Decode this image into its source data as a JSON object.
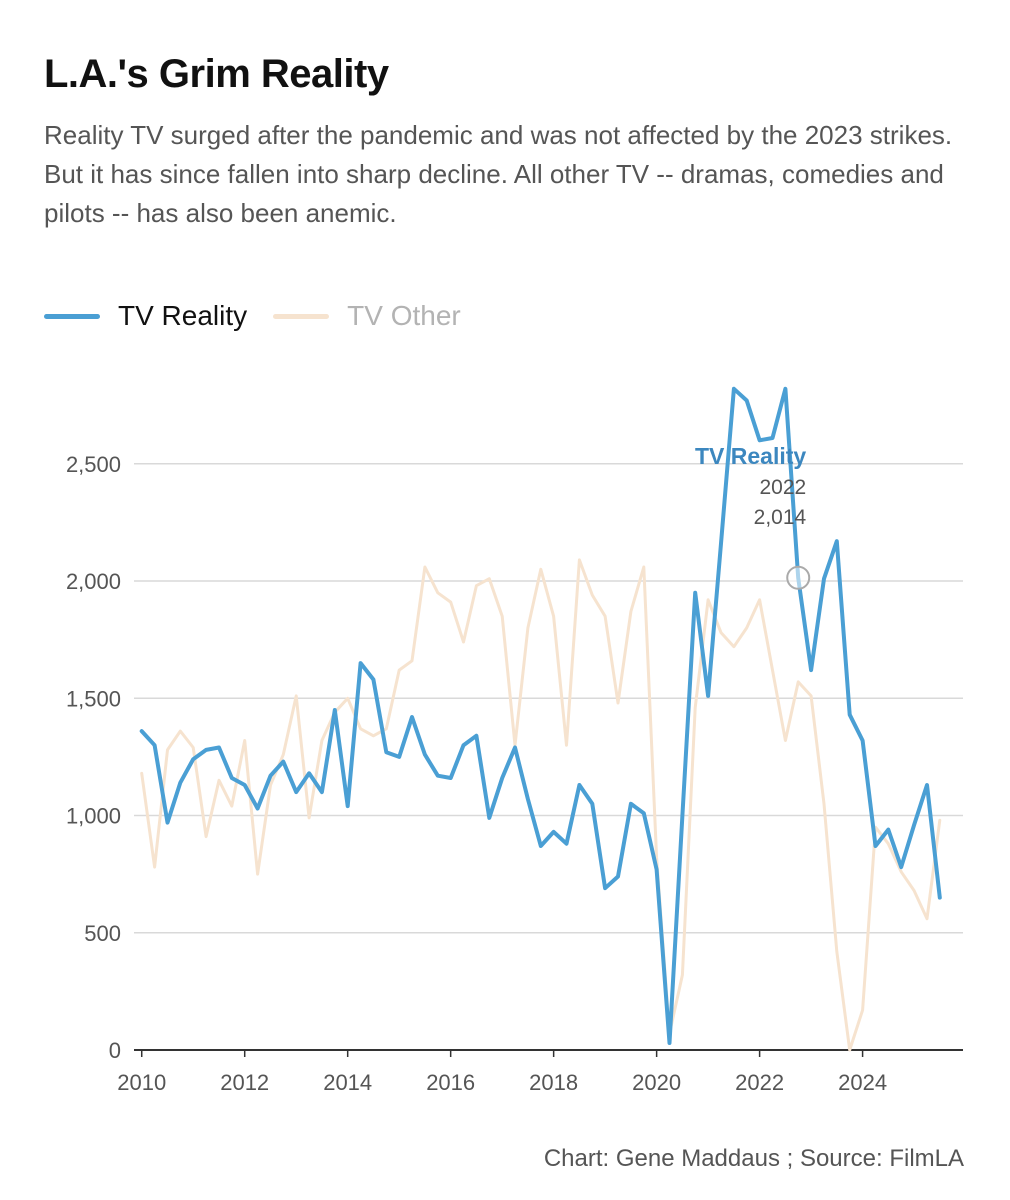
{
  "title": "L.A.'s Grim Reality",
  "subtitle": "Reality TV surged after the pandemic and was not affected by the 2023 strikes. But it has since fallen into sharp decline. All other TV -- dramas, comedies and pilots -- has also been anemic.",
  "source": "Chart: Gene Maddaus ; Source: FilmLA",
  "colors": {
    "reality": "#4a9fd4",
    "other": "#f6e3cf",
    "grid": "#d9d9d9",
    "axis": "#333333",
    "tick_text": "#555555",
    "tooltip_title": "#3c87bf",
    "tooltip_text": "#555555",
    "marker": "#aaaaaa"
  },
  "chart_data": {
    "type": "line",
    "title": "L.A.'s Grim Reality",
    "xlabel": "",
    "ylabel": "",
    "xlim": [
      2009.85,
      2025.95
    ],
    "ylim": [
      0,
      2900
    ],
    "grid": true,
    "legend_position": "top-left",
    "x_ticks": [
      2010,
      2012,
      2014,
      2016,
      2018,
      2020,
      2022,
      2024
    ],
    "x_tick_labels": [
      "2010",
      "2012",
      "2014",
      "2016",
      "2018",
      "2020",
      "2022",
      "2024"
    ],
    "y_ticks": [
      0,
      500,
      1000,
      1500,
      2000,
      2500
    ],
    "y_tick_labels": [
      "0",
      "500",
      "1,000",
      "1,500",
      "2,000",
      "2,500"
    ],
    "x": [
      2010.0,
      2010.25,
      2010.5,
      2010.75,
      2011.0,
      2011.25,
      2011.5,
      2011.75,
      2012.0,
      2012.25,
      2012.5,
      2012.75,
      2013.0,
      2013.25,
      2013.5,
      2013.75,
      2014.0,
      2014.25,
      2014.5,
      2014.75,
      2015.0,
      2015.25,
      2015.5,
      2015.75,
      2016.0,
      2016.25,
      2016.5,
      2016.75,
      2017.0,
      2017.25,
      2017.5,
      2017.75,
      2018.0,
      2018.25,
      2018.5,
      2018.75,
      2019.0,
      2019.25,
      2019.5,
      2019.75,
      2020.0,
      2020.25,
      2020.5,
      2020.75,
      2021.0,
      2021.25,
      2021.5,
      2021.75,
      2022.0,
      2022.25,
      2022.5,
      2022.75,
      2023.0,
      2023.25,
      2023.5,
      2023.75,
      2024.0,
      2024.25,
      2024.5,
      2024.75,
      2025.0,
      2025.25,
      2025.5
    ],
    "series": [
      {
        "name": "TV Other",
        "values": [
          1180,
          780,
          1280,
          1360,
          1290,
          910,
          1150,
          1040,
          1320,
          750,
          1130,
          1260,
          1510,
          990,
          1320,
          1440,
          1500,
          1370,
          1340,
          1370,
          1620,
          1660,
          2060,
          1950,
          1910,
          1740,
          1980,
          2010,
          1850,
          1300,
          1800,
          2050,
          1850,
          1300,
          2090,
          1940,
          1850,
          1480,
          1870,
          2060,
          820,
          70,
          320,
          1460,
          1920,
          1780,
          1720,
          1800,
          1920,
          1620,
          1320,
          1570,
          1510,
          1050,
          420,
          0,
          170,
          950,
          880,
          760,
          680,
          560,
          980
        ]
      },
      {
        "name": "TV Reality",
        "values": [
          1360,
          1300,
          970,
          1140,
          1240,
          1280,
          1290,
          1160,
          1130,
          1030,
          1170,
          1230,
          1100,
          1180,
          1100,
          1450,
          1040,
          1650,
          1580,
          1270,
          1250,
          1420,
          1260,
          1170,
          1160,
          1300,
          1340,
          990,
          1160,
          1290,
          1070,
          870,
          930,
          880,
          1130,
          1050,
          690,
          740,
          1050,
          1010,
          770,
          30,
          1000,
          1950,
          1510,
          2160,
          2820,
          2770,
          2600,
          2610,
          2820,
          2014,
          1620,
          2010,
          2170,
          1430,
          1320,
          870,
          940,
          780,
          960,
          1130,
          650
        ]
      }
    ],
    "tooltip": {
      "series": "TV Reality",
      "x_label": "2022",
      "x": 2022.75,
      "value": 2014,
      "value_label": "2,014"
    }
  }
}
